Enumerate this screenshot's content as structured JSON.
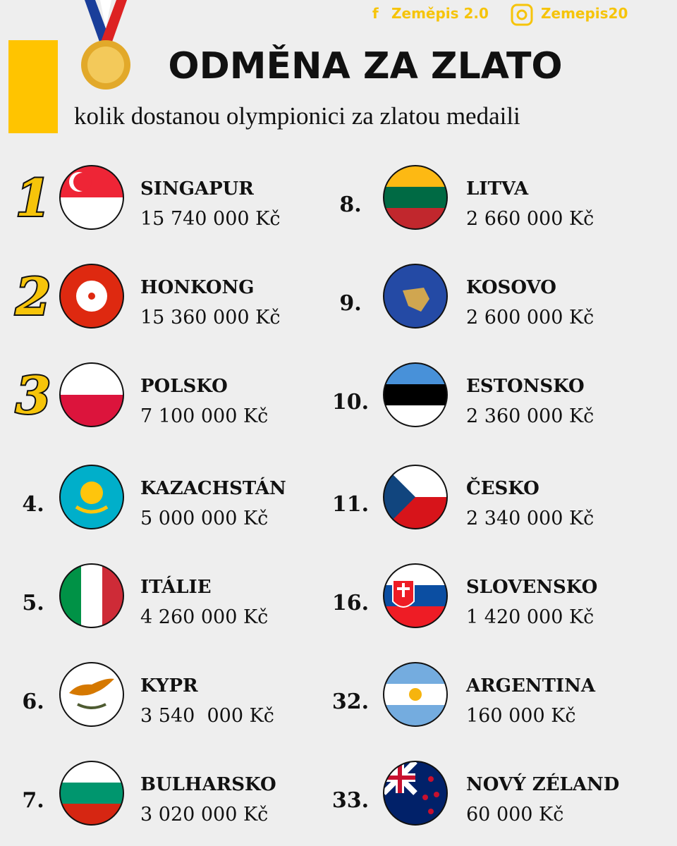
{
  "header": {
    "facebook": "Zeměpis 2.0",
    "instagram": "Zemepis20",
    "title": "ODMĚNA ZA ZLATO",
    "subtitle": "kolik dostanou olympionici za zlatou medaili"
  },
  "entries": [
    {
      "rank": "1",
      "country": "SINGAPUR",
      "amount": "15 740 000 Kč"
    },
    {
      "rank": "2",
      "country": "HONKONG",
      "amount": "15 360 000 Kč"
    },
    {
      "rank": "3",
      "country": "POLSKO",
      "amount": "7 100 000 Kč"
    },
    {
      "rank": "4.",
      "country": "KAZACHSTÁN",
      "amount": "5 000 000 Kč"
    },
    {
      "rank": "5.",
      "country": "ITÁLIE",
      "amount": "4 260 000 Kč"
    },
    {
      "rank": "6.",
      "country": "KYPR",
      "amount": "3 540  000 Kč"
    },
    {
      "rank": "7.",
      "country": "BULHARSKO",
      "amount": "3 020 000 Kč"
    },
    {
      "rank": "8.",
      "country": "LITVA",
      "amount": "2 660 000 Kč"
    },
    {
      "rank": "9.",
      "country": "KOSOVO",
      "amount": "2 600 000 Kč"
    },
    {
      "rank": "10.",
      "country": "ESTONSKO",
      "amount": "2 360 000 Kč"
    },
    {
      "rank": "11.",
      "country": "ČESKO",
      "amount": "2 340 000 Kč"
    },
    {
      "rank": "16.",
      "country": "SLOVENSKO",
      "amount": "1 420 000 Kč"
    },
    {
      "rank": "32.",
      "country": "ARGENTINA",
      "amount": "160 000 Kč"
    },
    {
      "rank": "33.",
      "country": "NOVÝ ZÉLAND",
      "amount": "60 000 Kč"
    }
  ]
}
